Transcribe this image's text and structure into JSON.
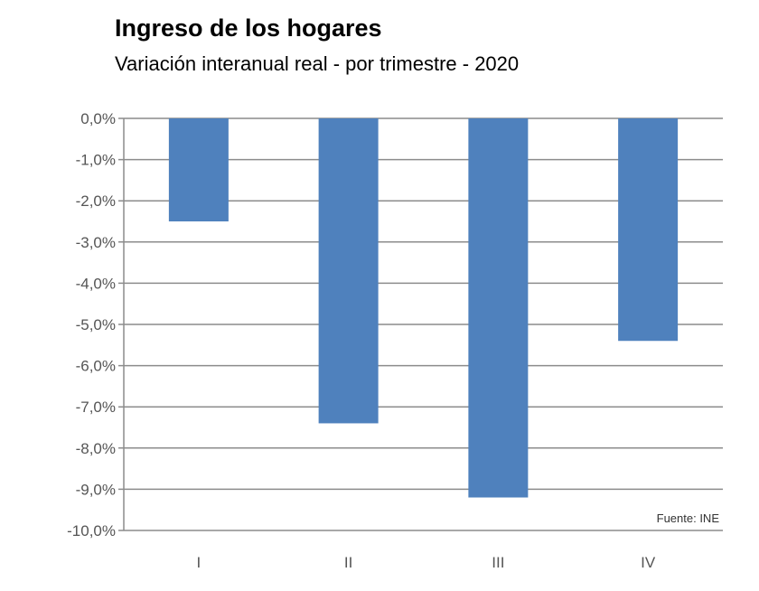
{
  "chart_data": {
    "type": "bar",
    "title": "Ingreso de los hogares",
    "subtitle": "Variación interanual real - por trimestre - 2020",
    "categories": [
      "I",
      "II",
      "III",
      "IV"
    ],
    "values": [
      -2.5,
      -7.4,
      -9.2,
      -5.4
    ],
    "unit": "%",
    "ylim": [
      -10,
      0
    ],
    "yticks": [
      0,
      -1,
      -2,
      -3,
      -4,
      -5,
      -6,
      -7,
      -8,
      -9,
      -10
    ],
    "ytick_labels": [
      "0,0%",
      "-1,0%",
      "-2,0%",
      "-3,0%",
      "-4,0%",
      "-5,0%",
      "-6,0%",
      "-7,0%",
      "-8,0%",
      "-9,0%",
      "-10,0%"
    ],
    "grid": true,
    "source": "Fuente: INE",
    "bar_color": "#4f81bd"
  }
}
